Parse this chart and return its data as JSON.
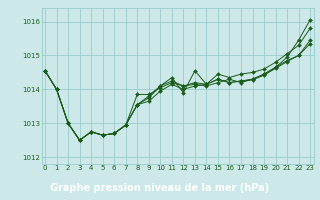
{
  "xlabel": "Graphe pression niveau de la mer (hPa)",
  "background_color": "#cce8e8",
  "plot_bg_color": "#cce8e8",
  "grid_color": "#99cccc",
  "line_color": "#1a5c1a",
  "marker_color": "#1a5c1a",
  "xlabel_bg": "#5a8a5a",
  "xlabel_fg": "#ffffff",
  "ylim": [
    1011.8,
    1016.4
  ],
  "xlim": [
    -0.3,
    23.3
  ],
  "yticks": [
    1012,
    1013,
    1014,
    1015,
    1016
  ],
  "xticks": [
    0,
    1,
    2,
    3,
    4,
    5,
    6,
    7,
    8,
    9,
    10,
    11,
    12,
    13,
    14,
    15,
    16,
    17,
    18,
    19,
    20,
    21,
    22,
    23
  ],
  "series": [
    [
      1014.55,
      1014.0,
      1013.0,
      1012.5,
      1012.75,
      1012.65,
      1012.7,
      1012.95,
      1013.85,
      1013.85,
      1014.05,
      1014.2,
      1014.1,
      1014.15,
      1014.1,
      1014.2,
      1014.3,
      1014.2,
      1014.3,
      1014.45,
      1014.65,
      1014.95,
      1015.45,
      1016.05
    ],
    [
      1014.55,
      1014.0,
      1013.0,
      1012.5,
      1012.75,
      1012.65,
      1012.7,
      1012.95,
      1013.55,
      1013.75,
      1014.1,
      1014.35,
      1013.9,
      1014.55,
      1014.15,
      1014.45,
      1014.35,
      1014.45,
      1014.5,
      1014.6,
      1014.8,
      1015.05,
      1015.3,
      1015.8
    ],
    [
      1014.55,
      1014.0,
      1013.0,
      1012.5,
      1012.75,
      1012.65,
      1012.7,
      1012.95,
      1013.55,
      1013.8,
      1014.1,
      1014.25,
      1014.1,
      1014.2,
      1014.15,
      1014.3,
      1014.2,
      1014.25,
      1014.3,
      1014.45,
      1014.65,
      1014.85,
      1015.0,
      1015.45
    ],
    [
      1014.55,
      1014.0,
      1013.0,
      1012.5,
      1012.75,
      1012.65,
      1012.7,
      1012.95,
      1013.55,
      1013.65,
      1013.95,
      1014.15,
      1014.0,
      1014.1,
      1014.15,
      1014.3,
      1014.2,
      1014.25,
      1014.28,
      1014.42,
      1014.62,
      1014.82,
      1015.0,
      1015.35
    ]
  ]
}
